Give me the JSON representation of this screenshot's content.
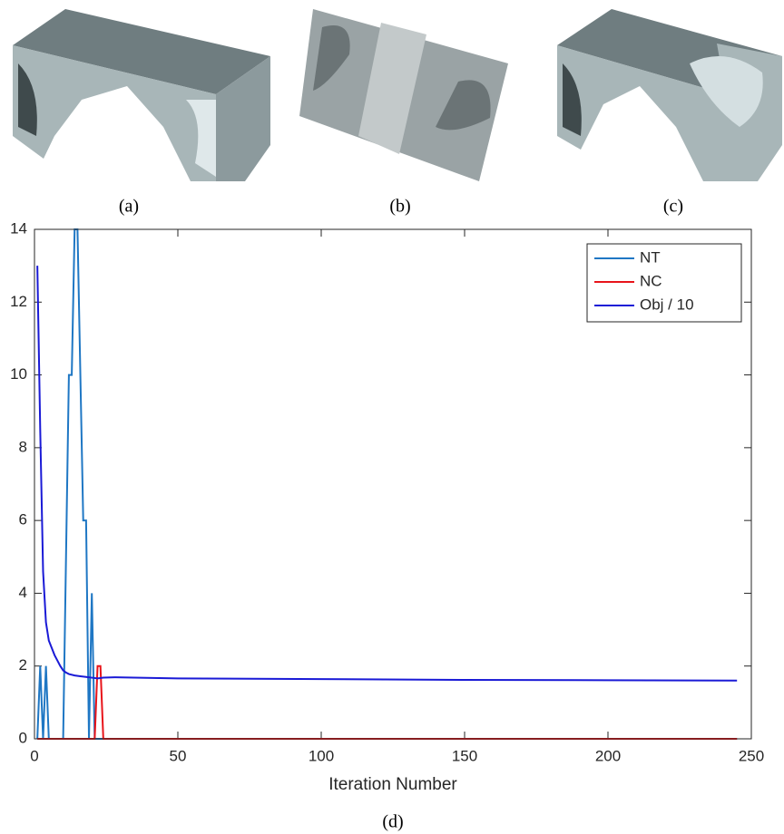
{
  "captions": [
    "(a)",
    "(b)",
    "(c)",
    "(d)"
  ],
  "chart_data": {
    "type": "line",
    "xlabel": "Iteration Number",
    "xlim": [
      0,
      250
    ],
    "xticks": [
      0,
      50,
      100,
      150,
      200,
      250
    ],
    "ylim": [
      0,
      14
    ],
    "yticks": [
      0,
      2,
      4,
      6,
      8,
      10,
      12,
      14
    ],
    "legend": "top-right",
    "series": [
      {
        "name": "NT",
        "color": "#1f77c4",
        "x": [
          1,
          2,
          3,
          4,
          5,
          10,
          12,
          13,
          14,
          15,
          17,
          18,
          19,
          20,
          21,
          245
        ],
        "values": [
          0,
          2,
          0,
          2,
          0,
          0,
          10,
          10,
          14,
          14,
          6,
          6,
          0,
          4,
          0,
          0
        ]
      },
      {
        "name": "NC",
        "color": "#e8141a",
        "x": [
          1,
          21,
          22,
          23,
          24,
          245
        ],
        "values": [
          0,
          0,
          2,
          2,
          0,
          0
        ]
      },
      {
        "name": "Obj / 10",
        "color": "#1a1ad6",
        "x": [
          1,
          2,
          3,
          4,
          5,
          6,
          7,
          8,
          9,
          10,
          11,
          12,
          14,
          16,
          18,
          20,
          22,
          24,
          28,
          50,
          100,
          150,
          200,
          245
        ],
        "values": [
          13,
          8.5,
          4.6,
          3.2,
          2.7,
          2.5,
          2.3,
          2.15,
          2.0,
          1.88,
          1.82,
          1.78,
          1.74,
          1.72,
          1.7,
          1.68,
          1.66,
          1.68,
          1.69,
          1.66,
          1.64,
          1.62,
          1.61,
          1.6
        ]
      }
    ]
  }
}
